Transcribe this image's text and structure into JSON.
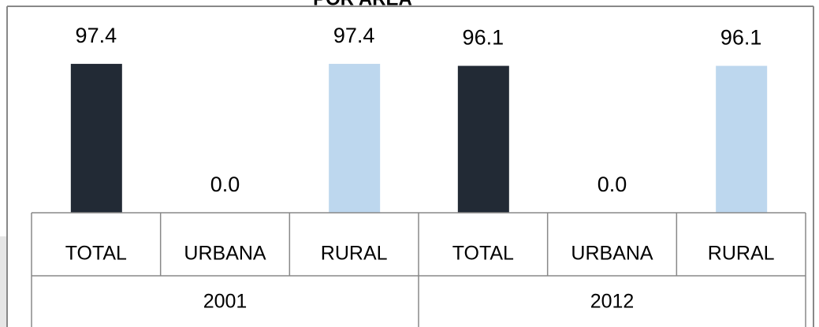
{
  "chart_data": {
    "type": "bar",
    "title": "POR AREA",
    "categories": [
      "TOTAL",
      "URBANA",
      "RURAL",
      "TOTAL",
      "URBANA",
      "RURAL"
    ],
    "groups": [
      "2001",
      "2012"
    ],
    "values": [
      97.4,
      0,
      97.4,
      96.1,
      0,
      96.1
    ],
    "value_labels": [
      "97.4",
      "0.0",
      "97.4",
      "96.1",
      "0.0",
      "96.1"
    ],
    "colors": [
      "#222a35",
      "#ffffff",
      "#bdd7ee",
      "#222a35",
      "#ffffff",
      "#bdd7ee"
    ],
    "ylim": [
      0,
      100
    ]
  }
}
